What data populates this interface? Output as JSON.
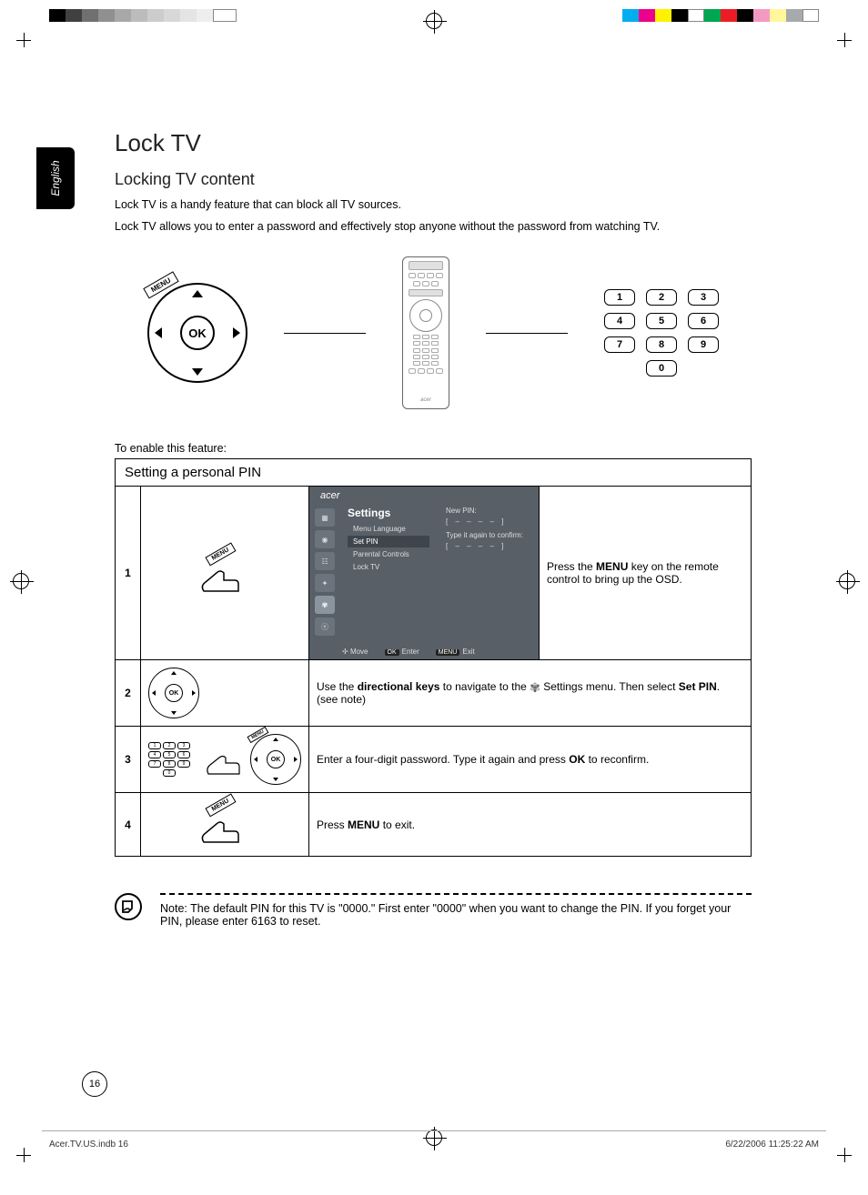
{
  "print": {
    "gray_bars": [
      "#000000",
      "#404040",
      "#707070",
      "#909090",
      "#a8a8a8",
      "#bcbcbc",
      "#cccccc",
      "#d8d8d8",
      "#e4e4e4",
      "#eeeeee"
    ],
    "cmyk_bars": [
      "#00aeef",
      "#ec008c",
      "#fff200",
      "#000000",
      "#ffffff",
      "#00a651",
      "#ed1c24",
      "#000000",
      "#f49ac1",
      "#fff799",
      "#a7a9ac",
      "#ffffff"
    ]
  },
  "lang_tab": "English",
  "title": "Lock TV",
  "subtitle": "Locking TV content",
  "intro1": "Lock TV is a handy feature that can block all TV sources.",
  "intro2": "Lock TV allows you to enter a password and effectively stop anyone without the password from watching TV.",
  "dpad_ok": "OK",
  "dpad_menu": "MENU",
  "keypad": [
    "1",
    "2",
    "3",
    "4",
    "5",
    "6",
    "7",
    "8",
    "9",
    "0"
  ],
  "enable_label": "To enable this feature:",
  "table_caption": "Setting a personal PIN",
  "osd": {
    "brand": "acer",
    "heading": "Settings",
    "items": [
      "Menu Language",
      "Set PIN",
      "Parental Controls",
      "Lock TV"
    ],
    "selected_index": 1,
    "new_pin_label": "New PIN:",
    "pin_mask": "[  –   –   –   –  ]",
    "confirm_label": "Type it again to confirm:",
    "footer_move": "Move",
    "footer_enter": "Enter",
    "footer_enter_key": "OK",
    "footer_exit": "Exit",
    "footer_exit_key": "MENU",
    "bg": "#585f67",
    "icon_bg": "#6b737c",
    "icon_active_bg": "#8a949e",
    "item_sel_bg": "#3f454c"
  },
  "steps": [
    {
      "n": "1",
      "text_pre": "Press the ",
      "b1": "MENU",
      "text_post": " key on the remote control to bring up the OSD."
    },
    {
      "n": "2",
      "text_pre": "Use the ",
      "b1": "directional keys",
      "text_mid": " to navigate to the ",
      "gear": true,
      "text_mid2": " Settings menu. Then select ",
      "b2": "Set PIN",
      "text_post": ". (see note)"
    },
    {
      "n": "3",
      "text_pre": "Enter a four-digit password. Type it again and press ",
      "b1": "OK",
      "text_post": " to reconfirm."
    },
    {
      "n": "4",
      "text_pre": "Press ",
      "b1": "MENU",
      "text_post": " to exit."
    }
  ],
  "note": "Note: The default PIN for this TV is \"0000.\" First enter \"0000\" when you want to change the PIN. If you forget your PIN, please enter 6163 to reset.",
  "page_number": "16",
  "footer_file": "Acer.TV.US.indb   16",
  "footer_time": "6/22/2006   11:25:22 AM",
  "remote_brand": "acer"
}
